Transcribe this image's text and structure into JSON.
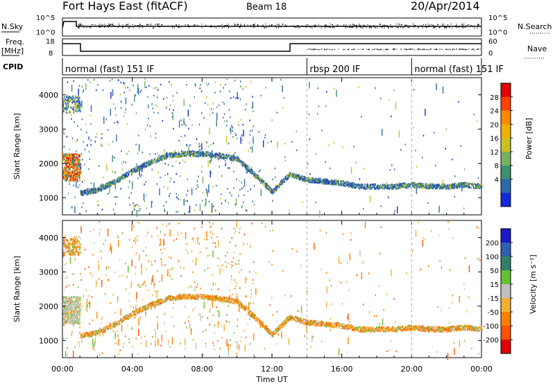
{
  "header": {
    "title": "Fort Hays East (fitACF)",
    "beam": "Beam 18",
    "date": "20/Apr/2014"
  },
  "top_panels": {
    "nsky_label": "N.Sky",
    "nsearch_label": "N.Search",
    "nsky_ticks": [
      "10^5",
      "10^0"
    ],
    "nsky_right_ticks": [
      "10^5",
      "10^0"
    ],
    "freq_label": "Freq.",
    "freq_unit": "[MHz]",
    "freq_ticks": [
      "18",
      "8"
    ],
    "nave_label": "Nave",
    "nave_ticks": [
      "60",
      "0"
    ],
    "cpid_label": "CPID"
  },
  "cpid_segments": [
    {
      "start": 0.0,
      "end": 14.0,
      "label": "normal (fast) 151 IF"
    },
    {
      "start": 14.0,
      "end": 20.0,
      "label": "rbsp 200 IF"
    },
    {
      "start": 20.0,
      "end": 24.0,
      "label": "normal (fast) 151 IF"
    }
  ],
  "x_axis": {
    "label": "Time UT",
    "range_hours": [
      0,
      24
    ],
    "ticks": [
      "00:00",
      "04:00",
      "08:00",
      "12:00",
      "16:00",
      "20:00",
      "00:00"
    ]
  },
  "power_panel": {
    "ylabel": "Slant Range [km]",
    "yticks": [
      "4000",
      "3000",
      "2000",
      "1000"
    ],
    "cbar_label": "Power [dB]",
    "cbar_ticks": [
      "28",
      "24",
      "20",
      "16",
      "12",
      "8",
      "4"
    ],
    "cbar_colors": [
      "#e00000",
      "#ff4000",
      "#ff8800",
      "#f0b000",
      "#c8c020",
      "#78b060",
      "#3c9070",
      "#2c6aa8",
      "#1428d8"
    ]
  },
  "velocity_panel": {
    "ylabel": "Slant Range [km]",
    "yticks": [
      "4000",
      "3000",
      "2000",
      "1000"
    ],
    "cbar_label": "Velocity [m s⁻¹]",
    "cbar_ticks": [
      "200",
      "100",
      "50",
      "15",
      "-15",
      "-50",
      "-100",
      "-200"
    ],
    "cbar_colors": [
      "#1a1ac8",
      "#2f5fb0",
      "#2e8068",
      "#64c030",
      "#c0c0c0",
      "#f0b030",
      "#ff8000",
      "#ff5000",
      "#e00000"
    ]
  },
  "chart_data": {
    "type": "heatmap",
    "title": "Fort Hays East (fitACF)",
    "xlabel": "Time UT",
    "ylabel": "Slant Range [km]",
    "x_range_hours": [
      0,
      24
    ],
    "y_range_km": [
      500,
      4500
    ],
    "main_echo_band": {
      "time_h": [
        0.5,
        1.0,
        2.0,
        3.0,
        4.0,
        5.0,
        6.0,
        7.0,
        8.0,
        9.0,
        10.0,
        11.0,
        12.0,
        13.0,
        14.0,
        15.0,
        16.0,
        17.0,
        18.0,
        19.0,
        20.0,
        21.0,
        22.0,
        23.0,
        24.0
      ],
      "range_km": [
        1700,
        1150,
        1250,
        1500,
        1800,
        2050,
        2250,
        2300,
        2300,
        2250,
        2150,
        1700,
        1200,
        1700,
        1550,
        1500,
        1450,
        1350,
        1350,
        1350,
        1400,
        1350,
        1350,
        1400,
        1350
      ]
    },
    "near_range_scatter": {
      "time_h": [
        0,
        1
      ],
      "range_km": [
        1500,
        2300
      ]
    },
    "far_range_scatter": {
      "time_h": [
        0,
        1
      ],
      "range_km": [
        3500,
        4000
      ]
    }
  }
}
